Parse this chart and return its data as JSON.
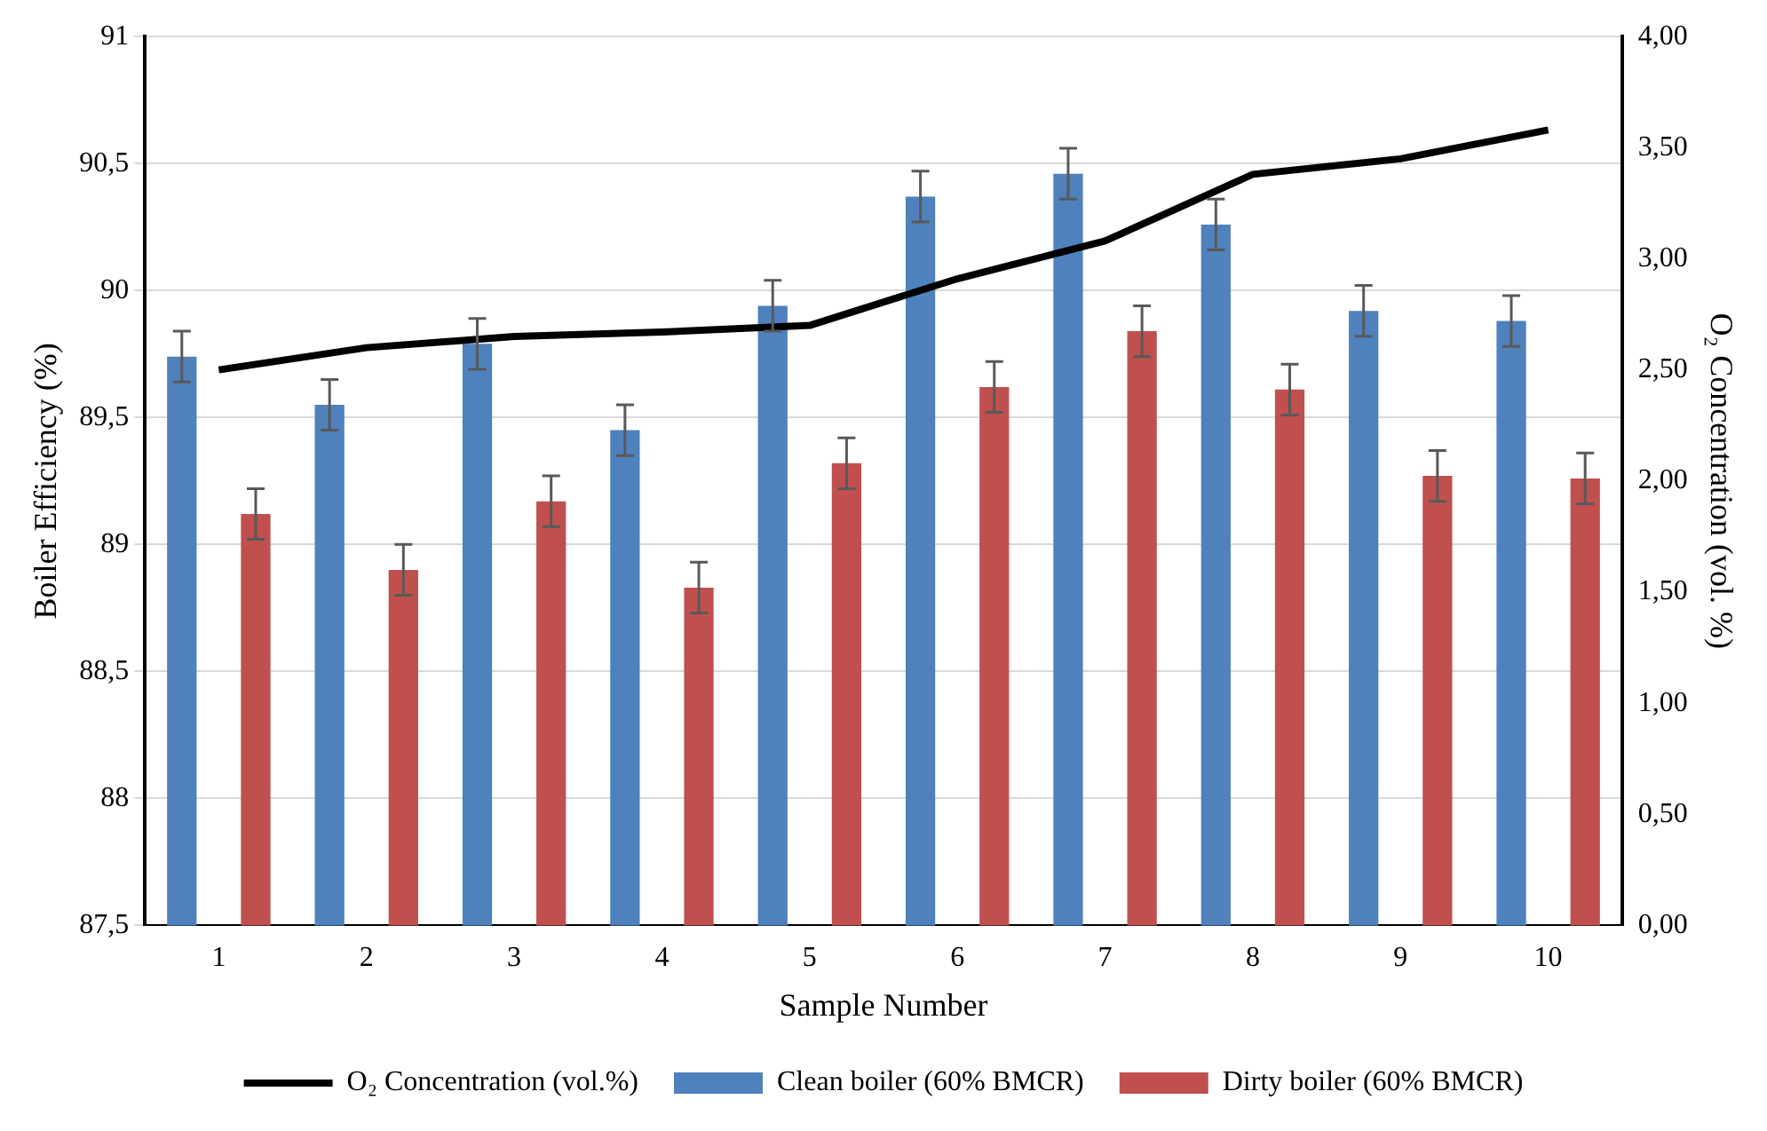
{
  "chart_data": {
    "type": "bar",
    "xlabel": "Sample Number",
    "ylabel": "Boiler Efficiency (%)",
    "y2label": "O₂ Concentration (vol. %)",
    "categories": [
      "1",
      "2",
      "3",
      "4",
      "5",
      "6",
      "7",
      "8",
      "9",
      "10"
    ],
    "series": [
      {
        "name": "Clean boiler (60% BMCR)",
        "color": "#4f81bd",
        "values": [
          89.74,
          89.55,
          89.79,
          89.45,
          89.94,
          90.37,
          90.46,
          90.26,
          89.92,
          89.88
        ],
        "errors": [
          0.1,
          0.1,
          0.1,
          0.1,
          0.1,
          0.1,
          0.1,
          0.1,
          0.1,
          0.1
        ]
      },
      {
        "name": "Dirty boiler (60% BMCR)",
        "color": "#c0504d",
        "values": [
          89.12,
          88.9,
          89.17,
          88.83,
          89.32,
          89.62,
          89.84,
          89.61,
          89.27,
          89.26
        ],
        "errors": [
          0.1,
          0.1,
          0.1,
          0.1,
          0.1,
          0.1,
          0.1,
          0.1,
          0.1,
          0.1
        ]
      },
      {
        "name": "O₂ Concentration (vol.%)",
        "type": "line",
        "axis": "y2",
        "color": "#000000",
        "values": [
          2.5,
          2.6,
          2.65,
          2.67,
          2.7,
          2.91,
          3.08,
          3.38,
          3.45,
          3.58
        ]
      }
    ],
    "ylim": [
      87.5,
      91
    ],
    "yticks": [
      {
        "value": 87.5,
        "label": "87,5"
      },
      88,
      {
        "value": 88.5,
        "label": "88,5"
      },
      89,
      {
        "value": 89.5,
        "label": "89,5"
      },
      90,
      {
        "value": 90.5,
        "label": "90,5"
      },
      91
    ],
    "y2lim": [
      0,
      4
    ],
    "y2ticks": [
      {
        "value": 0,
        "label": "0,00"
      },
      {
        "value": 0.5,
        "label": "0,50"
      },
      {
        "value": 1,
        "label": "1,00"
      },
      {
        "value": 1.5,
        "label": "1,50"
      },
      {
        "value": 2,
        "label": "2,00"
      },
      {
        "value": 2.5,
        "label": "2,50"
      },
      {
        "value": 3,
        "label": "3,00"
      },
      {
        "value": 3.5,
        "label": "3,50"
      },
      {
        "value": 4,
        "label": "4,00"
      }
    ],
    "grid": "y",
    "legend": "bottom",
    "marker": "none",
    "line_style": "solid"
  }
}
